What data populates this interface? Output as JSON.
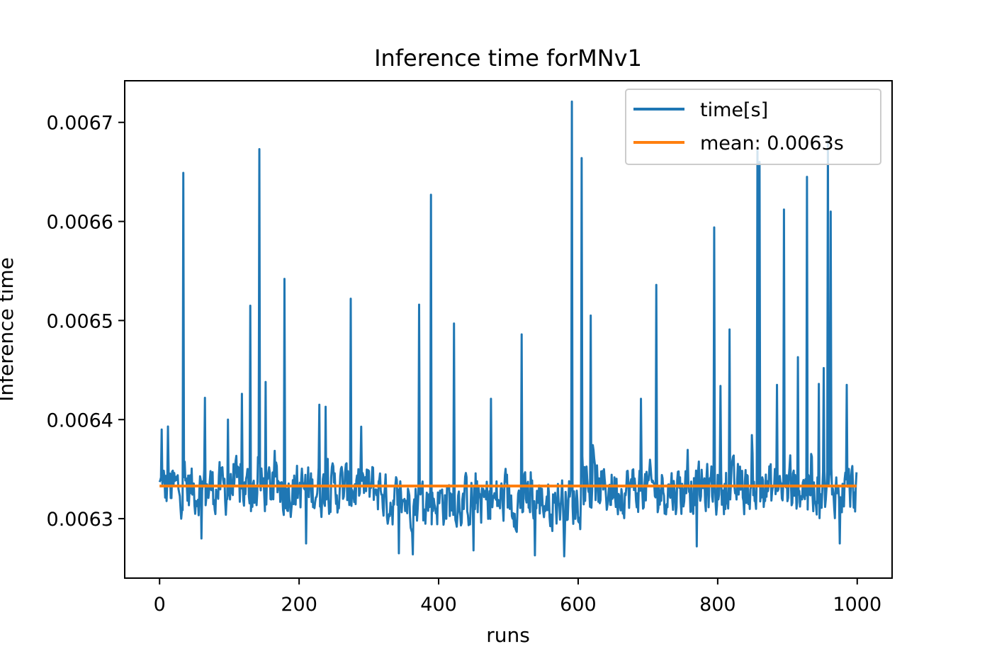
{
  "chart_data": {
    "type": "line",
    "title": "Inference time forMNv1",
    "xlabel": "runs",
    "ylabel": "Inference time",
    "xlim": [
      -50,
      1050
    ],
    "ylim": [
      0.00624,
      0.006742
    ],
    "xticks": [
      0,
      200,
      400,
      600,
      800,
      1000
    ],
    "xtick_labels": [
      "0",
      "200",
      "400",
      "600",
      "800",
      "1000"
    ],
    "yticks": [
      0.0063,
      0.0064,
      0.0065,
      0.0066,
      0.0067
    ],
    "ytick_labels": [
      "0.0063",
      "0.0064",
      "0.0065",
      "0.0066",
      "0.0067"
    ],
    "grid": false,
    "legend_position": "upper right",
    "series": [
      {
        "name": "time[s]",
        "color": "#1f77b4",
        "n_points": 1000,
        "baseline_approx": 0.00633,
        "spikes": [
          {
            "x": 3,
            "y": 0.00639
          },
          {
            "x": 12,
            "y": 0.006393
          },
          {
            "x": 34,
            "y": 0.006649
          },
          {
            "x": 65,
            "y": 0.006422
          },
          {
            "x": 98,
            "y": 0.0064
          },
          {
            "x": 118,
            "y": 0.006426
          },
          {
            "x": 130,
            "y": 0.006515
          },
          {
            "x": 143,
            "y": 0.006673
          },
          {
            "x": 152,
            "y": 0.006438
          },
          {
            "x": 179,
            "y": 0.006542
          },
          {
            "x": 229,
            "y": 0.006415
          },
          {
            "x": 238,
            "y": 0.006413
          },
          {
            "x": 274,
            "y": 0.006522
          },
          {
            "x": 372,
            "y": 0.006516
          },
          {
            "x": 389,
            "y": 0.006627
          },
          {
            "x": 422,
            "y": 0.006497
          },
          {
            "x": 475,
            "y": 0.006421
          },
          {
            "x": 519,
            "y": 0.006486
          },
          {
            "x": 591,
            "y": 0.006721
          },
          {
            "x": 605,
            "y": 0.006664
          },
          {
            "x": 618,
            "y": 0.006505
          },
          {
            "x": 690,
            "y": 0.006421
          },
          {
            "x": 712,
            "y": 0.006536
          },
          {
            "x": 795,
            "y": 0.006594
          },
          {
            "x": 804,
            "y": 0.006434
          },
          {
            "x": 817,
            "y": 0.006491
          },
          {
            "x": 857,
            "y": 0.006672
          },
          {
            "x": 860,
            "y": 0.00666
          },
          {
            "x": 885,
            "y": 0.006435
          },
          {
            "x": 895,
            "y": 0.006612
          },
          {
            "x": 915,
            "y": 0.006463
          },
          {
            "x": 928,
            "y": 0.006645
          },
          {
            "x": 945,
            "y": 0.006436
          },
          {
            "x": 952,
            "y": 0.006452
          },
          {
            "x": 958,
            "y": 0.006681
          },
          {
            "x": 962,
            "y": 0.00661
          },
          {
            "x": 985,
            "y": 0.006435
          }
        ],
        "dips": [
          {
            "x": 343,
            "y": 0.006265
          },
          {
            "x": 363,
            "y": 0.006264
          },
          {
            "x": 538,
            "y": 0.006263
          },
          {
            "x": 580,
            "y": 0.006262
          },
          {
            "x": 210,
            "y": 0.006275
          },
          {
            "x": 450,
            "y": 0.006268
          },
          {
            "x": 770,
            "y": 0.006272
          },
          {
            "x": 975,
            "y": 0.006275
          },
          {
            "x": 60,
            "y": 0.00628
          }
        ]
      },
      {
        "name": "mean: 0.0063s",
        "color": "#ff7f0e",
        "x": [
          0,
          999
        ],
        "y": [
          0.006333,
          0.006333
        ]
      }
    ]
  }
}
